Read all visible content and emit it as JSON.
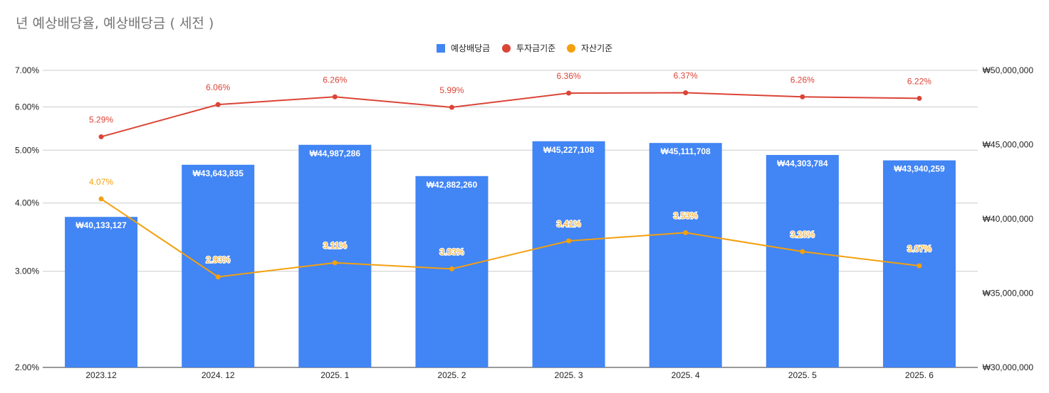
{
  "chart_data": {
    "type": "bar",
    "title": "년 예상배당율, 예상배당금 ( 세전 )",
    "categories": [
      "2023.12",
      "2024. 12",
      "2025. 1",
      "2025. 2",
      "2025. 3",
      "2025. 4",
      "2025. 5",
      "2025. 6"
    ],
    "legend": {
      "position": "top",
      "items": [
        "예상배당금",
        "투자금기준",
        "자산기준"
      ]
    },
    "series": [
      {
        "name": "예상배당금",
        "type": "bar",
        "axis": "right",
        "color": "#4285f4",
        "values": [
          40133127,
          43643835,
          44987286,
          42882260,
          45227108,
          45111708,
          44303784,
          43940259
        ],
        "labels": [
          "₩40,133,127",
          "₩43,643,835",
          "₩44,987,286",
          "₩42,882,260",
          "₩45,227,108",
          "₩45,111,708",
          "₩44,303,784",
          "₩43,940,259"
        ]
      },
      {
        "name": "투자금기준",
        "type": "line",
        "axis": "left",
        "color": "#db4437",
        "values": [
          5.29,
          6.06,
          6.26,
          5.99,
          6.36,
          6.37,
          6.26,
          6.22
        ],
        "labels": [
          "5.29%",
          "6.06%",
          "6.26%",
          "5.99%",
          "6.36%",
          "6.37%",
          "6.26%",
          "6.22%"
        ]
      },
      {
        "name": "자산기준",
        "type": "line",
        "axis": "left",
        "color": "#f4a00e",
        "values": [
          4.07,
          2.93,
          3.11,
          3.03,
          3.41,
          3.53,
          3.26,
          3.07
        ],
        "labels": [
          "4.07%",
          "2.93%",
          "3.11%",
          "3.03%",
          "3.41%",
          "3.53%",
          "3.26%",
          "3.07%"
        ]
      }
    ],
    "y_left": {
      "scale": "log",
      "range": [
        2,
        7
      ],
      "ticks": [
        2,
        3,
        4,
        5,
        6,
        7
      ],
      "tick_labels": [
        "2.00%",
        "3.00%",
        "4.00%",
        "5.00%",
        "6.00%",
        "7.00%"
      ]
    },
    "y_right": {
      "scale": "linear",
      "range": [
        30000000,
        50000000
      ],
      "ticks": [
        30000000,
        35000000,
        40000000,
        45000000,
        50000000
      ],
      "tick_labels": [
        "₩30,000,000",
        "₩35,000,000",
        "₩40,000,000",
        "₩45,000,000",
        "₩50,000,000"
      ]
    },
    "grid": true
  }
}
